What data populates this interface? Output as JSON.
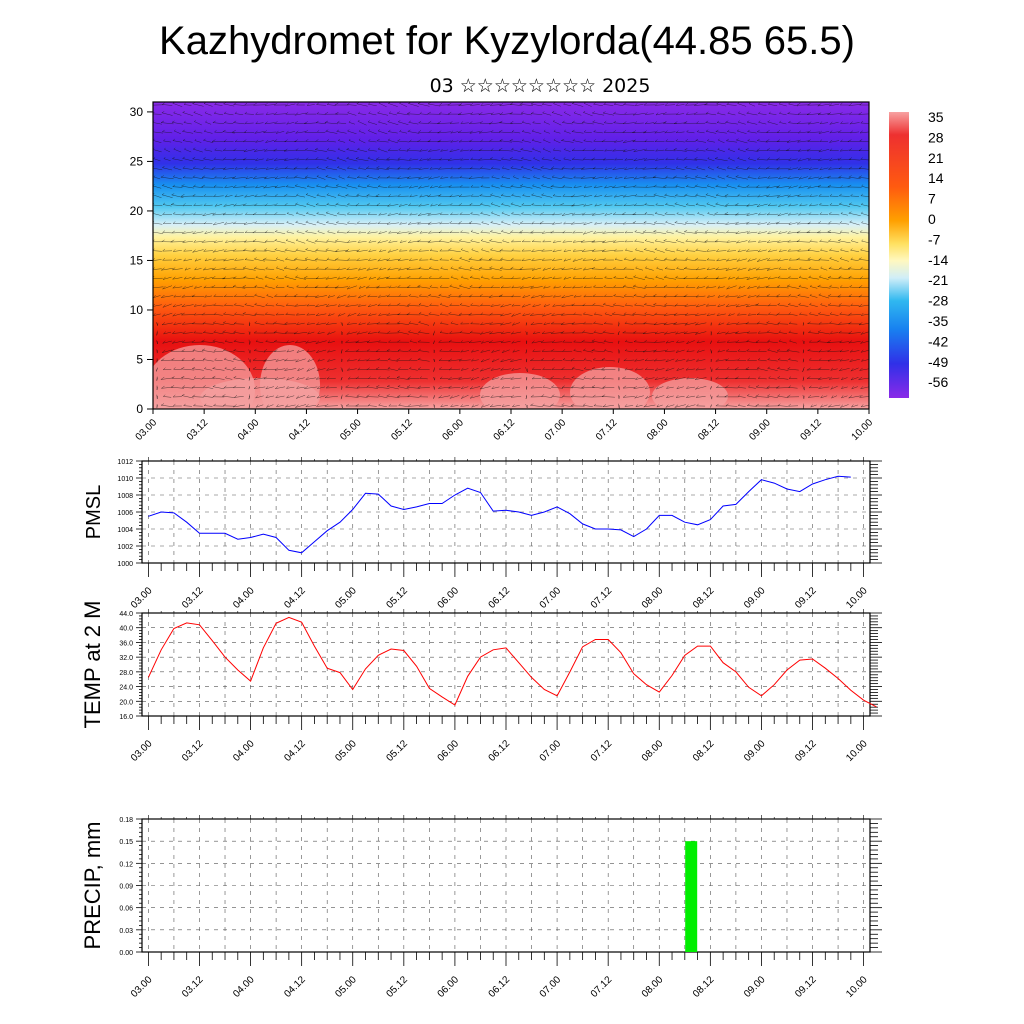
{
  "title": "Kazhydromet for Kyzylorda(44.85 65.5)",
  "subtitle": "03 ☆☆☆☆☆☆☆☆ 2025",
  "chart_data": [
    {
      "type": "heatmap",
      "ylim": [
        0,
        31
      ],
      "y_ticks": [
        "0",
        "5",
        "10",
        "15",
        "20",
        "25",
        "30"
      ],
      "x_ticks": [
        "03.00",
        "03.12",
        "04.00",
        "04.12",
        "05.00",
        "05.12",
        "06.00",
        "06.12",
        "07.00",
        "07.12",
        "08.00",
        "08.12",
        "09.00",
        "09.12",
        "10.00"
      ],
      "colorbar_labels": [
        "35",
        "28",
        "21",
        "14",
        "7",
        "0",
        "-7",
        "-14",
        "-21",
        "-28",
        "-35",
        "-42",
        "-49",
        "-56"
      ],
      "colorbar_range": [
        -63,
        42
      ],
      "overlay": "wind vectors"
    },
    {
      "type": "line",
      "ylabel": "PMSL",
      "ylim": [
        1000,
        1012
      ],
      "y_ticks": [
        "1000",
        "1002",
        "1004",
        "1006",
        "1008",
        "1010",
        "1012"
      ],
      "x_ticks": [
        "03.00",
        "03.12",
        "04.00",
        "04.12",
        "05.00",
        "05.12",
        "06.00",
        "06.12",
        "07.00",
        "07.12",
        "08.00",
        "08.12",
        "09.00",
        "09.12",
        "10.00"
      ],
      "x_range": [
        -0.5,
        56.5
      ],
      "x_step_hours": 3,
      "values": [
        1005.5,
        1006.0,
        1005.9,
        1004.8,
        1003.5,
        1003.5,
        1003.5,
        1002.8,
        1003.0,
        1003.4,
        1003.0,
        1001.5,
        1001.2,
        1002.5,
        1003.8,
        1004.8,
        1006.3,
        1008.2,
        1008.1,
        1006.7,
        1006.3,
        1006.6,
        1007.0,
        1007.0,
        1008.0,
        1008.8,
        1008.3,
        1006.1,
        1006.2,
        1006.0,
        1005.6,
        1006.0,
        1006.6,
        1005.8,
        1004.6,
        1004.0,
        1004.0,
        1003.9,
        1003.1,
        1004.0,
        1005.6,
        1005.6,
        1004.8,
        1004.5,
        1005.1,
        1006.7,
        1006.9,
        1008.4,
        1009.8,
        1009.4,
        1008.7,
        1008.4,
        1009.3,
        1009.8,
        1010.2,
        1010.1
      ],
      "color": "#0000ff"
    },
    {
      "type": "line",
      "ylabel": "TEMP at 2 M",
      "ylim": [
        16,
        44
      ],
      "y_ticks": [
        "16.0",
        "20.0",
        "24.0",
        "28.0",
        "32.0",
        "36.0",
        "40.0",
        "44.0"
      ],
      "x_ticks": [
        "03.00",
        "03.12",
        "04.00",
        "04.12",
        "05.00",
        "05.12",
        "06.00",
        "06.12",
        "07.00",
        "07.12",
        "08.00",
        "08.12",
        "09.00",
        "09.12",
        "10.00"
      ],
      "x_range": [
        -0.5,
        56.5
      ],
      "x_step_hours": 3,
      "values": [
        26.5,
        34.0,
        39.8,
        41.3,
        40.8,
        36.5,
        32.0,
        28.5,
        25.5,
        34.5,
        41.2,
        42.8,
        41.5,
        35.0,
        29.0,
        27.8,
        23.2,
        28.8,
        32.5,
        34.2,
        33.8,
        29.5,
        23.5,
        21.2,
        19.0,
        26.8,
        32.0,
        34.0,
        34.5,
        30.5,
        26.5,
        23.2,
        21.5,
        28.0,
        34.8,
        36.8,
        36.8,
        33.2,
        27.5,
        24.5,
        22.5,
        27.0,
        32.5,
        35.0,
        35.0,
        30.5,
        28.0,
        23.8,
        21.5,
        24.5,
        28.5,
        31.2,
        31.5,
        29.0,
        26.2,
        23.0,
        20.3,
        18.5
      ],
      "color": "#ff0000"
    },
    {
      "type": "bar",
      "ylabel": "PRECIP, mm",
      "ylim": [
        0,
        0.18
      ],
      "y_ticks": [
        "0.00",
        "0.03",
        "0.06",
        "0.09",
        "0.12",
        "0.15",
        "0.18"
      ],
      "x_ticks": [
        "03.00",
        "03.12",
        "04.00",
        "04.12",
        "05.00",
        "05.12",
        "06.00",
        "06.12",
        "07.00",
        "07.12",
        "08.00",
        "08.12",
        "09.00",
        "09.12",
        "10.00"
      ],
      "x_range": [
        -0.5,
        56.5
      ],
      "bars": [
        {
          "x": 42.5,
          "value": 0.15
        }
      ],
      "color": "#00ee00"
    }
  ]
}
